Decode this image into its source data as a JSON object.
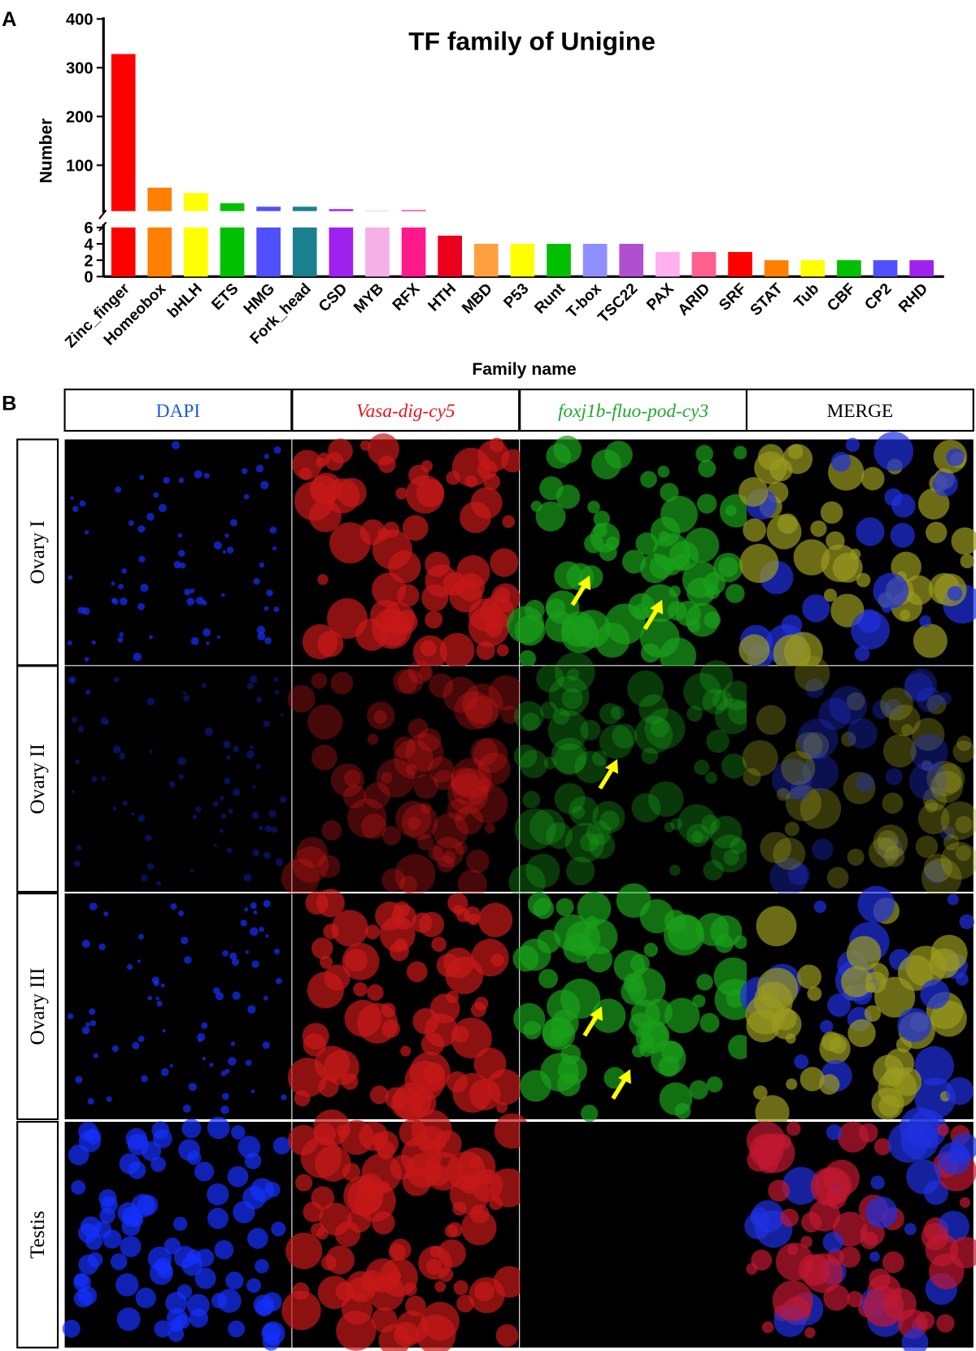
{
  "panel_labels": [
    "A",
    "B"
  ],
  "chart_data": {
    "type": "bar",
    "title": "TF family of Unigine",
    "x_label": "Family name",
    "y_label": "Number",
    "categories": [
      "Zinc_finger",
      "Homeobox",
      "bHLH",
      "ETS",
      "HMG",
      "Fork_head",
      "CSD",
      "MYB",
      "RFX",
      "HTH",
      "MBD",
      "P53",
      "Runt",
      "T-box",
      "TSC22",
      "PAX",
      "ARID",
      "SRF",
      "STAT",
      "Tub",
      "CBF",
      "CP2",
      "RHD"
    ],
    "values": [
      328,
      54,
      43,
      22,
      15,
      15,
      10,
      7,
      8,
      5,
      4,
      4,
      4,
      4,
      4,
      3,
      3,
      3,
      2,
      2,
      2,
      2,
      2
    ],
    "colors": [
      "#ff0000",
      "#ff8000",
      "#ffff00",
      "#00c000",
      "#5050ff",
      "#1a7f8f",
      "#a020f0",
      "#f5b0e8",
      "#ff1a8c",
      "#e8001c",
      "#ffa040",
      "#ffff00",
      "#00c000",
      "#8f8fff",
      "#b050d0",
      "#ffb0f0",
      "#ff6090",
      "#ff0000",
      "#ff8000",
      "#ffff00",
      "#00c000",
      "#5050ff",
      "#a020f0"
    ],
    "segments": [
      {
        "ylim": [
          0,
          6
        ],
        "yticks": [
          0,
          2,
          4,
          6
        ]
      },
      {
        "ylim": [
          6,
          400
        ],
        "yticks": [
          100,
          200,
          300,
          400
        ]
      }
    ]
  },
  "figure_b": {
    "columns": [
      "DAPI",
      "Vasa-dig-cy5",
      "foxj1b-fluo-pod-cy3",
      "MERGE"
    ],
    "rows": [
      "Ovary I",
      "Ovary II",
      "Ovary III",
      "Testis"
    ]
  }
}
